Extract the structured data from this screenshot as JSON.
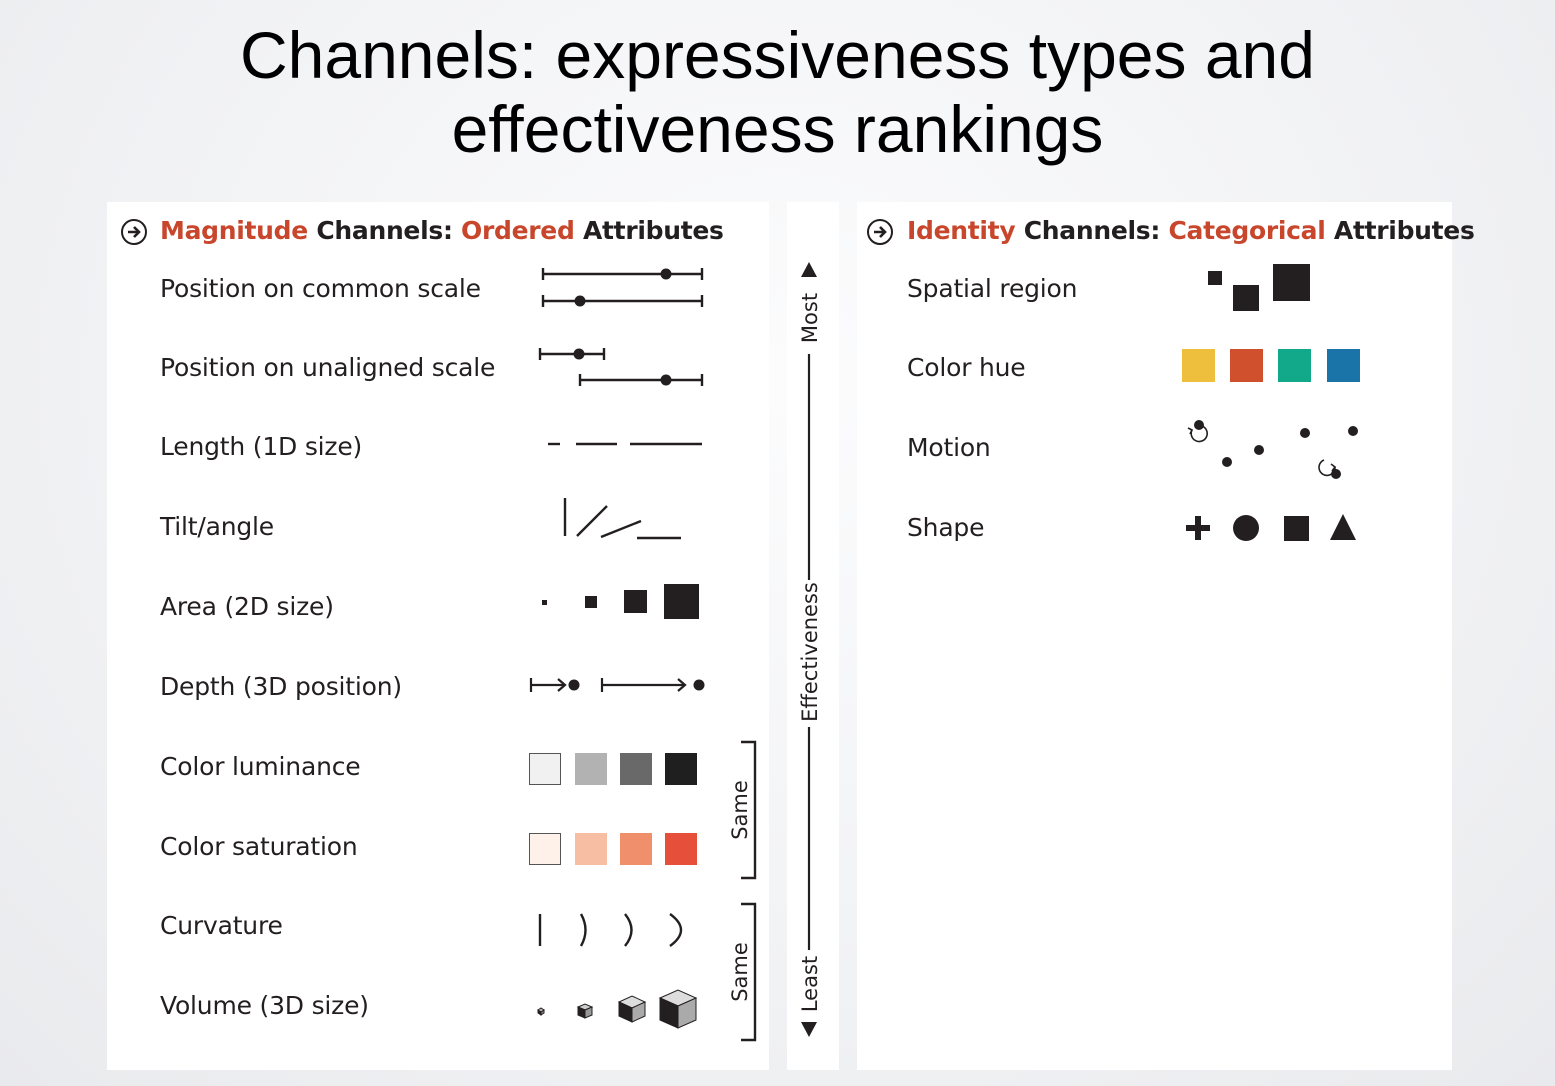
{
  "title": {
    "line1": "Channels: expressiveness types and",
    "line2": "effectiveness rankings"
  },
  "magnitude": {
    "header": {
      "accent1": "Magnitude",
      "text1": " Channels: ",
      "accent2": "Ordered",
      "text2": " Attributes"
    },
    "rows": [
      "Position on common scale",
      "Position on unaligned scale",
      "Length (1D size)",
      "Tilt/angle",
      "Area (2D size)",
      "Depth (3D position)",
      "Color luminance",
      "Color saturation",
      "Curvature",
      "Volume (3D size)"
    ],
    "luminance_colors": [
      "#f1f1f1",
      "#b2b2b2",
      "#696969",
      "#1f1f1f"
    ],
    "saturation_colors": [
      "#fdf1ea",
      "#f7bea4",
      "#ef8f6c",
      "#e6503a"
    ],
    "bracket_label_1": "Same",
    "bracket_label_2": "Same"
  },
  "effectiveness": {
    "top": "Most",
    "middle": "Effectiveness",
    "bottom": "Least"
  },
  "identity": {
    "header": {
      "accent1": "Identity",
      "text1": " Channels: ",
      "accent2": "Categorical",
      "text2": " Attributes"
    },
    "rows": [
      "Spatial region",
      "Color hue",
      "Motion",
      "Shape"
    ],
    "hue_colors": [
      "#eebe3d",
      "#d0502e",
      "#12a88a",
      "#1a74a8"
    ]
  },
  "colors": {
    "accent": "#c8462b",
    "ink": "#231f20"
  }
}
